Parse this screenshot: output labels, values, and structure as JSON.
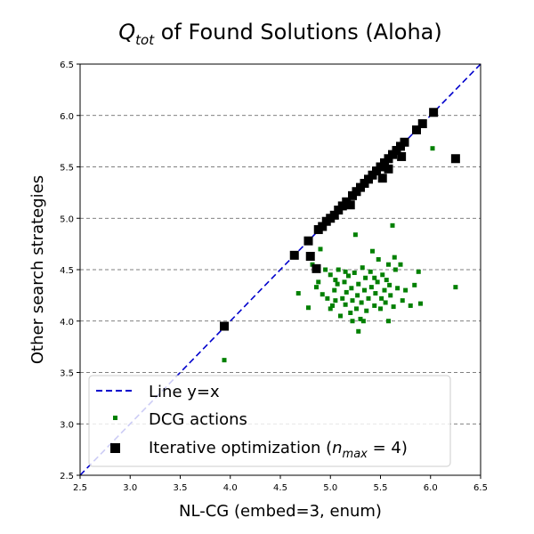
{
  "chart_data": {
    "type": "scatter",
    "title_main": "Q",
    "title_sub": "tot",
    "title_rest": " of Found Solutions (Aloha)",
    "xlabel": "NL-CG (embed=3, enum)",
    "ylabel": "Other search strategies",
    "xlim": [
      2.5,
      6.5
    ],
    "ylim": [
      2.5,
      6.5
    ],
    "xticks": [
      "2.5",
      "3.0",
      "3.5",
      "4.0",
      "4.5",
      "5.0",
      "5.5",
      "6.0",
      "6.5"
    ],
    "yticks": [
      "2.5",
      "3.0",
      "3.5",
      "4.0",
      "4.5",
      "5.0",
      "5.5",
      "6.0",
      "6.5"
    ],
    "grid": "horizontal dashed",
    "legend_position": "lower-left",
    "series": [
      {
        "name": "Line y=x",
        "kind": "line",
        "color": "#0000cc",
        "style": "dashed",
        "x": [
          2.5,
          6.5
        ],
        "y": [
          2.5,
          6.5
        ]
      },
      {
        "name": "DCG actions",
        "kind": "scatter",
        "marker": "small-square",
        "color": "#008000",
        "points": [
          [
            3.94,
            3.62
          ],
          [
            4.68,
            4.27
          ],
          [
            4.78,
            4.13
          ],
          [
            4.82,
            4.55
          ],
          [
            4.86,
            4.33
          ],
          [
            4.88,
            4.38
          ],
          [
            4.9,
            4.7
          ],
          [
            4.92,
            4.26
          ],
          [
            4.95,
            4.5
          ],
          [
            4.97,
            4.22
          ],
          [
            5.0,
            4.45
          ],
          [
            5.0,
            4.12
          ],
          [
            5.02,
            4.15
          ],
          [
            5.04,
            4.3
          ],
          [
            5.05,
            4.2
          ],
          [
            5.07,
            4.36
          ],
          [
            5.08,
            4.5
          ],
          [
            5.1,
            4.05
          ],
          [
            5.12,
            4.22
          ],
          [
            5.14,
            4.38
          ],
          [
            5.15,
            4.16
          ],
          [
            5.16,
            4.28
          ],
          [
            5.18,
            4.44
          ],
          [
            5.2,
            4.08
          ],
          [
            5.21,
            4.32
          ],
          [
            5.22,
            4.2
          ],
          [
            5.24,
            4.47
          ],
          [
            5.25,
            4.84
          ],
          [
            5.26,
            4.12
          ],
          [
            5.27,
            4.25
          ],
          [
            5.28,
            4.36
          ],
          [
            5.3,
            4.02
          ],
          [
            5.31,
            4.18
          ],
          [
            5.32,
            4.52
          ],
          [
            5.34,
            4.3
          ],
          [
            5.35,
            4.42
          ],
          [
            5.36,
            4.1
          ],
          [
            5.38,
            4.22
          ],
          [
            5.4,
            4.48
          ],
          [
            5.41,
            4.33
          ],
          [
            5.42,
            4.68
          ],
          [
            5.44,
            4.15
          ],
          [
            5.45,
            4.27
          ],
          [
            5.47,
            4.38
          ],
          [
            5.48,
            4.6
          ],
          [
            5.5,
            4.12
          ],
          [
            5.51,
            4.22
          ],
          [
            5.52,
            4.45
          ],
          [
            5.54,
            4.3
          ],
          [
            5.55,
            4.18
          ],
          [
            5.56,
            4.4
          ],
          [
            5.58,
            4.55
          ],
          [
            5.59,
            4.35
          ],
          [
            5.6,
            4.25
          ],
          [
            5.62,
            4.93
          ],
          [
            5.63,
            4.14
          ],
          [
            5.65,
            4.5
          ],
          [
            5.67,
            4.32
          ],
          [
            5.7,
            4.55
          ],
          [
            5.72,
            4.2
          ],
          [
            5.75,
            4.3
          ],
          [
            5.8,
            4.15
          ],
          [
            5.84,
            4.35
          ],
          [
            5.88,
            4.48
          ],
          [
            5.9,
            4.17
          ],
          [
            6.02,
            5.68
          ],
          [
            6.25,
            4.33
          ],
          [
            5.28,
            3.9
          ],
          [
            5.33,
            4.0
          ],
          [
            5.15,
            4.48
          ],
          [
            5.44,
            4.42
          ],
          [
            5.58,
            4.0
          ],
          [
            5.64,
            4.62
          ],
          [
            5.05,
            4.4
          ],
          [
            5.22,
            4.0
          ]
        ]
      },
      {
        "name": "Iterative optimization (n_max = 4)",
        "kind": "scatter",
        "marker": "square",
        "color": "#000000",
        "points": [
          [
            3.94,
            3.95
          ],
          [
            4.64,
            4.64
          ],
          [
            4.78,
            4.78
          ],
          [
            4.8,
            4.63
          ],
          [
            4.86,
            4.51
          ],
          [
            4.88,
            4.89
          ],
          [
            4.92,
            4.92
          ],
          [
            4.96,
            4.97
          ],
          [
            5.0,
            5.0
          ],
          [
            5.04,
            5.03
          ],
          [
            5.08,
            5.08
          ],
          [
            5.12,
            5.12
          ],
          [
            5.16,
            5.16
          ],
          [
            5.2,
            5.13
          ],
          [
            5.22,
            5.22
          ],
          [
            5.26,
            5.26
          ],
          [
            5.3,
            5.3
          ],
          [
            5.34,
            5.34
          ],
          [
            5.38,
            5.38
          ],
          [
            5.42,
            5.42
          ],
          [
            5.46,
            5.46
          ],
          [
            5.5,
            5.5
          ],
          [
            5.52,
            5.39
          ],
          [
            5.54,
            5.54
          ],
          [
            5.58,
            5.58
          ],
          [
            5.58,
            5.48
          ],
          [
            5.62,
            5.62
          ],
          [
            5.66,
            5.66
          ],
          [
            5.7,
            5.7
          ],
          [
            5.71,
            5.6
          ],
          [
            5.74,
            5.74
          ],
          [
            5.86,
            5.86
          ],
          [
            5.92,
            5.92
          ],
          [
            6.03,
            6.03
          ],
          [
            6.25,
            5.58
          ]
        ]
      }
    ],
    "legend": {
      "line_label": "Line y=x",
      "dcg_label": "DCG actions",
      "iter_label_prefix": "Iterative optimization (",
      "iter_label_var": "n",
      "iter_label_sub": "max",
      "iter_label_suffix": " = 4)"
    }
  }
}
